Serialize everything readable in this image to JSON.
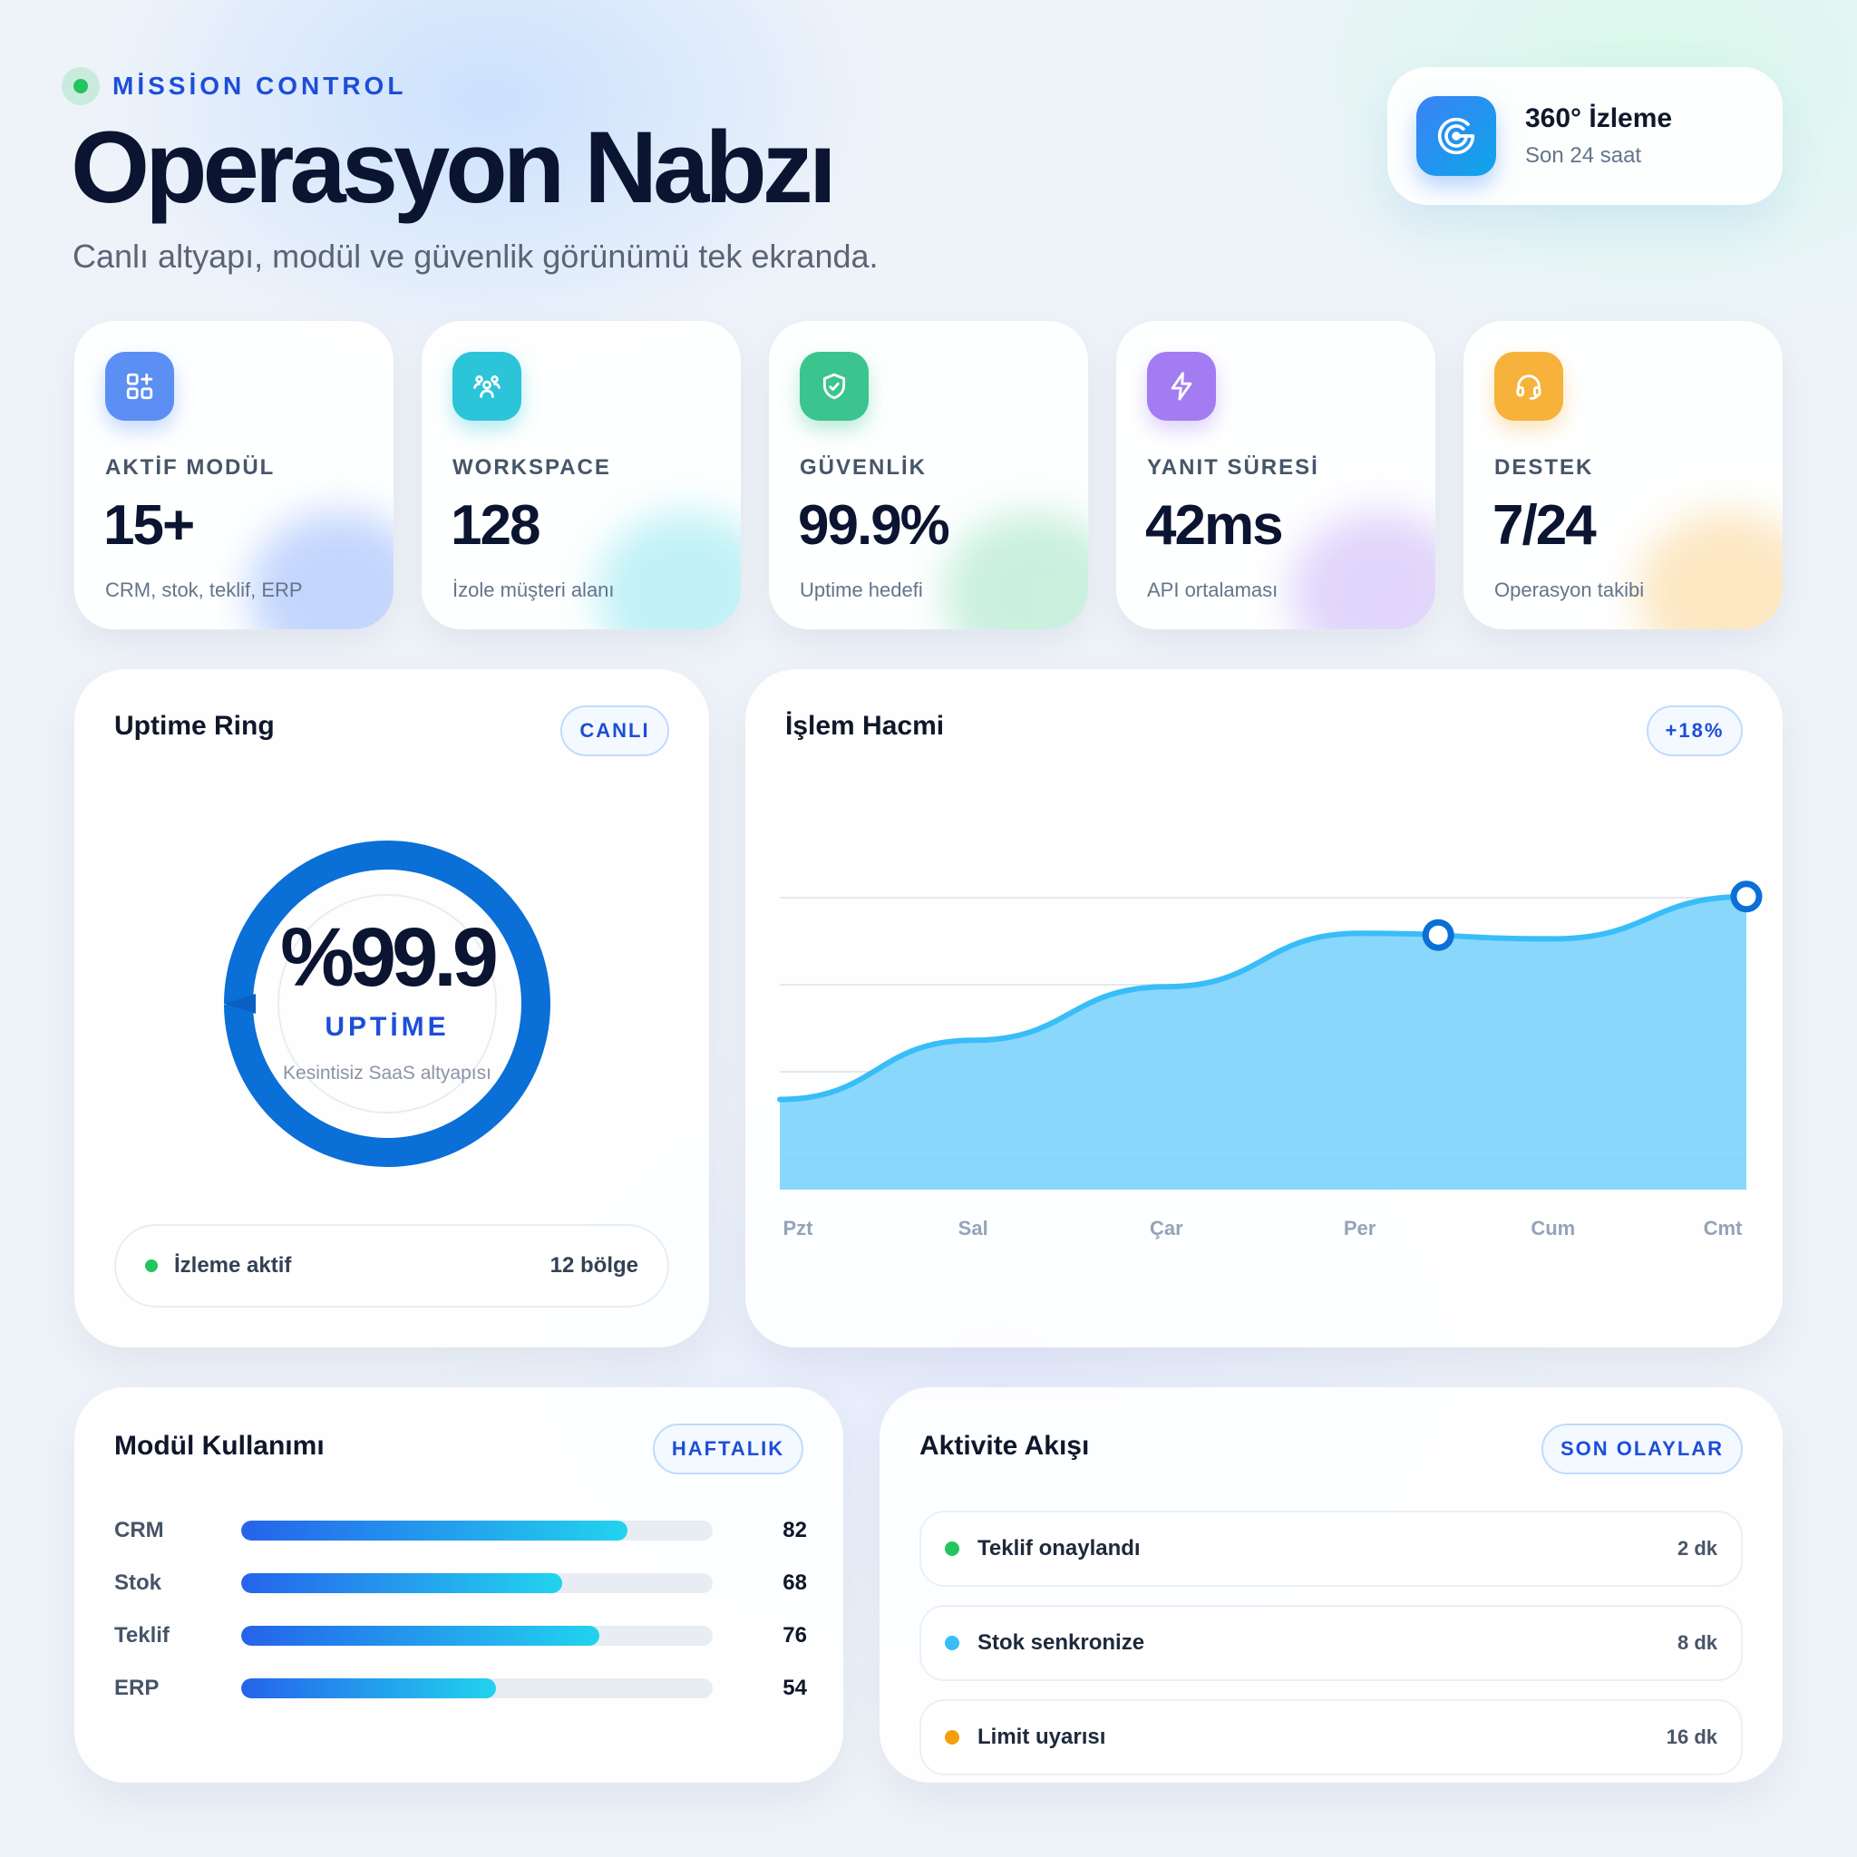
{
  "header": {
    "eyebrow": "MİSSİON CONTROL",
    "title": "Operasyon Nabzı",
    "subtitle": "Canlı altyapı, modül ve güvenlik görünümü tek ekranda."
  },
  "badge": {
    "title": "360° İzleme",
    "subtitle": "Son 24 saat",
    "icon": "radar-icon"
  },
  "kpis": [
    {
      "label": "AKTİF MODÜL",
      "value": "15+",
      "desc": "CRM, stok, teklif, ERP",
      "icon": "grid-plus-icon",
      "color": "#4f8df5"
    },
    {
      "label": "WORKSPACE",
      "value": "128",
      "desc": "İzole müşteri alanı",
      "icon": "users-icon",
      "color": "#22c1d6"
    },
    {
      "label": "GÜVENLİK",
      "value": "99.9%",
      "desc": "Uptime hedefi",
      "icon": "shield-icon",
      "color": "#34c38f"
    },
    {
      "label": "YANIT SÜRESİ",
      "value": "42ms",
      "desc": "API ortalaması",
      "icon": "bolt-icon",
      "color": "#a47cf3"
    },
    {
      "label": "DESTEK",
      "value": "7/24",
      "desc": "Operasyon takibi",
      "icon": "headset-icon",
      "color": "#f7b23b"
    }
  ],
  "uptime": {
    "title": "Uptime Ring",
    "pill": "CANLI",
    "value_text": "%99.9",
    "progress": 0.999,
    "label": "UPTİME",
    "caption": "Kesintisiz SaaS altyapısı",
    "footer_text": "İzleme aktif",
    "footer_value": "12 bölge"
  },
  "volume": {
    "title": "İşlem Hacmi",
    "pill": "+18%"
  },
  "chart_data": {
    "type": "area",
    "categories": [
      "Pzt",
      "Sal",
      "Çar",
      "Per",
      "Cum",
      "Cmt"
    ],
    "values": [
      32,
      53,
      72,
      91,
      89,
      104
    ],
    "color": "#38bdf8"
  },
  "modules": {
    "title": "Modül Kullanımı",
    "pill": "HAFTALIK",
    "items": [
      {
        "name": "CRM",
        "value": 82
      },
      {
        "name": "Stok",
        "value": 68
      },
      {
        "name": "Teklif",
        "value": 76
      },
      {
        "name": "ERP",
        "value": 54
      }
    ]
  },
  "activity": {
    "title": "Aktivite Akışı",
    "pill": "SON OLAYLAR",
    "items": [
      {
        "text": "Teklif onaylandı",
        "time": "2 dk",
        "color": "#22c55e"
      },
      {
        "text": "Stok senkronize",
        "time": "8 dk",
        "color": "#38bdf8"
      },
      {
        "text": "Limit uyarısı",
        "time": "16 dk",
        "color": "#f59e0b"
      }
    ]
  }
}
